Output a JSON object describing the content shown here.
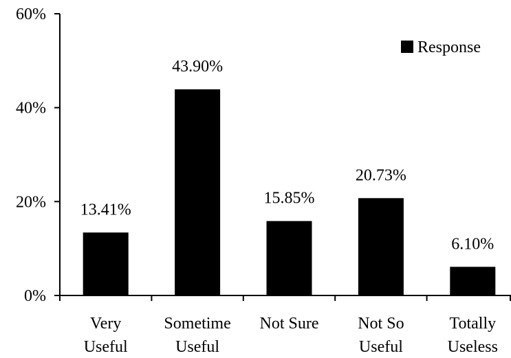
{
  "chart_data": {
    "type": "bar",
    "categories": [
      [
        "Very",
        "Useful"
      ],
      [
        "Sometime",
        "Useful"
      ],
      [
        "Not Sure"
      ],
      [
        "Not So",
        "Useful"
      ],
      [
        "Totally",
        "Useless"
      ]
    ],
    "series": [
      {
        "name": "Response",
        "values": [
          13.41,
          43.9,
          15.85,
          20.73,
          6.1
        ]
      }
    ],
    "data_labels": [
      "13.41%",
      "43.90%",
      "15.85%",
      "20.73%",
      "6.10%"
    ],
    "yticks": [
      "0%",
      "20%",
      "40%",
      "60%"
    ],
    "ylim": [
      0,
      60
    ],
    "title": "",
    "xlabel": "",
    "ylabel": "",
    "legend_position": "top-right",
    "grid": false,
    "bar_color": "#000000"
  }
}
